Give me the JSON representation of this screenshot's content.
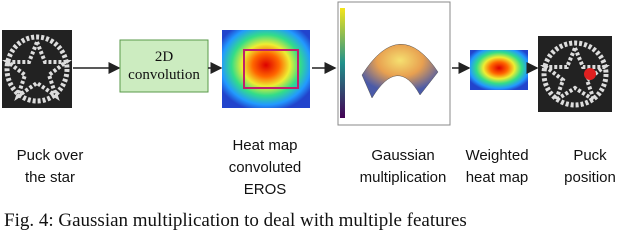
{
  "figure": {
    "steps": [
      {
        "label": [
          "Puck over",
          "the star"
        ]
      },
      {
        "box": [
          "2D",
          "convolution"
        ]
      },
      {
        "label": [
          "Heat map",
          "convoluted",
          "EROS"
        ]
      },
      {
        "label": [
          "Gaussian",
          "multiplication"
        ]
      },
      {
        "label": [
          "Weighted",
          "heat map"
        ]
      },
      {
        "label": [
          "Puck",
          "position"
        ]
      }
    ],
    "caption": "Fig. 4: Gaussian multiplication to deal with multiple features"
  }
}
